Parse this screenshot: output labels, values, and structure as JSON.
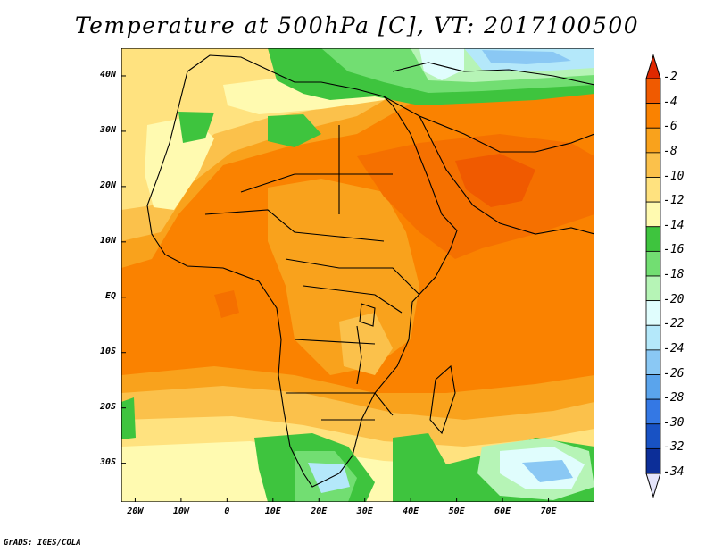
{
  "title": "Temperature at 500hPa [C], VT: 2017100500",
  "credit": "GrADS: IGES/COLA",
  "map": {
    "lon_range": [
      -23,
      80
    ],
    "lat_range": [
      -37,
      45
    ],
    "lon_ticks": [
      {
        "value": -20,
        "label": "20W"
      },
      {
        "value": -10,
        "label": "10W"
      },
      {
        "value": 0,
        "label": "0"
      },
      {
        "value": 10,
        "label": "10E"
      },
      {
        "value": 20,
        "label": "20E"
      },
      {
        "value": 30,
        "label": "30E"
      },
      {
        "value": 40,
        "label": "40E"
      },
      {
        "value": 50,
        "label": "50E"
      },
      {
        "value": 60,
        "label": "60E"
      },
      {
        "value": 70,
        "label": "70E"
      }
    ],
    "lat_ticks": [
      {
        "value": 40,
        "label": "40N"
      },
      {
        "value": 30,
        "label": "30N"
      },
      {
        "value": 20,
        "label": "20N"
      },
      {
        "value": 10,
        "label": "10N"
      },
      {
        "value": 0,
        "label": "EQ"
      },
      {
        "value": -10,
        "label": "10S"
      },
      {
        "value": -20,
        "label": "20S"
      },
      {
        "value": -30,
        "label": "30S"
      }
    ]
  },
  "colorbar": {
    "levels": [
      {
        "value": "-2",
        "color": "#f05a00"
      },
      {
        "value": "-4",
        "color": "#fa8200"
      },
      {
        "value": "-6",
        "color": "#f9a21c"
      },
      {
        "value": "-8",
        "color": "#fbc14b"
      },
      {
        "value": "-10",
        "color": "#ffe27f"
      },
      {
        "value": "-12",
        "color": "#fffab0"
      },
      {
        "value": "-14",
        "color": "#3ec43e"
      },
      {
        "value": "-16",
        "color": "#72de72"
      },
      {
        "value": "-18",
        "color": "#b6f4b6"
      },
      {
        "value": "-20",
        "color": "#e0fdfd"
      },
      {
        "value": "-22",
        "color": "#b4e8fa"
      },
      {
        "value": "-24",
        "color": "#8ac8f4"
      },
      {
        "value": "-26",
        "color": "#5aa4ec"
      },
      {
        "value": "-28",
        "color": "#3478e4"
      },
      {
        "value": "-30",
        "color": "#1852c4"
      },
      {
        "value": "-32",
        "color": "#0c2e98"
      },
      {
        "value": "-34",
        "color": "#081468"
      }
    ],
    "top_color": "#e02800",
    "bottom_color": "#e4e4fa"
  }
}
